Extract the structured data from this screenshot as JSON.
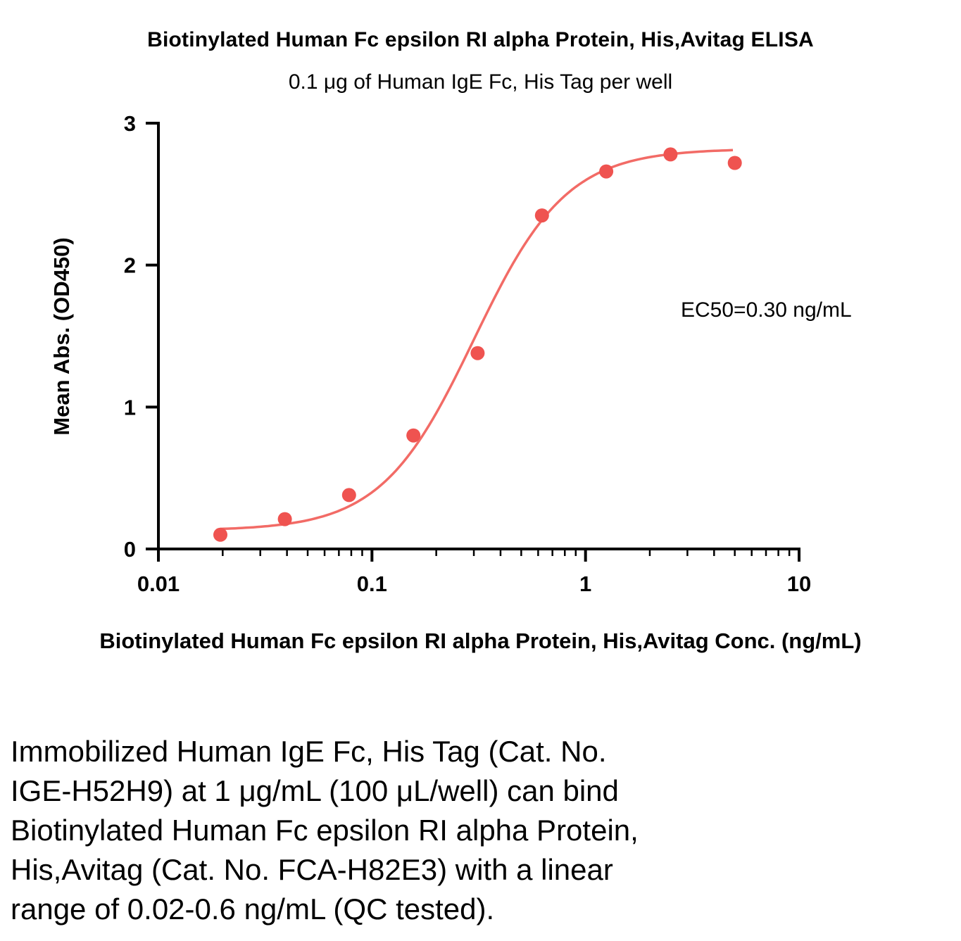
{
  "caption_lines": [
    "Immobilized Human IgE Fc, His Tag (Cat. No.",
    "IGE-H52H9) at 1 μg/mL (100 μL/well) can bind",
    "Biotinylated Human Fc epsilon RI alpha Protein,",
    "His,Avitag (Cat. No. FCA-H82E3) with a linear",
    "range of 0.02-0.6 ng/mL (QC tested)."
  ],
  "chart_data": {
    "type": "scatter",
    "title": "Biotinylated Human Fc epsilon RI alpha Protein, His,Avitag ELISA",
    "subtitle": "0.1 μg of Human IgE Fc, His Tag per well",
    "xlabel": "Biotinylated Human Fc epsilon RI alpha Protein, His,Avitag Conc. (ng/mL)",
    "ylabel": "Mean Abs. (OD450)",
    "x_scale": "log10",
    "xlim": [
      0.01,
      10
    ],
    "ylim": [
      0,
      3
    ],
    "x_ticks": [
      0.01,
      0.1,
      1,
      10
    ],
    "x_tick_labels": [
      "0.01",
      "0.1",
      "1",
      "10"
    ],
    "y_ticks": [
      0,
      1,
      2,
      3
    ],
    "y_tick_labels": [
      "0",
      "1",
      "2",
      "3"
    ],
    "grid": false,
    "legend": false,
    "ec50_label": "EC50=0.30 ng/mL",
    "series": [
      {
        "name": "Biotinylated Human Fc epsilon RI alpha Protein, His,Avitag",
        "x": [
          0.0195,
          0.0391,
          0.0781,
          0.1563,
          0.3125,
          0.625,
          1.25,
          2.5,
          5
        ],
        "y": [
          0.1,
          0.21,
          0.38,
          0.8,
          1.38,
          2.35,
          2.66,
          2.78,
          2.72
        ]
      }
    ],
    "fit": {
      "model": "4PL sigmoid",
      "bottom": 0.13,
      "top": 2.82,
      "ec50": 0.3,
      "hill": 2.0,
      "x_range": [
        0.0195,
        4.9
      ]
    },
    "colors": {
      "point": "#ef5350",
      "curve": "#f26b66",
      "axis": "#000000",
      "text": "#000000"
    }
  }
}
